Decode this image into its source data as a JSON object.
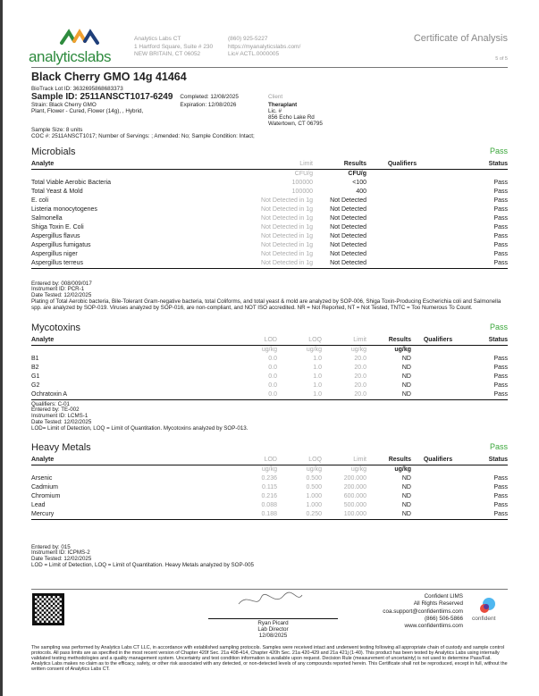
{
  "header": {
    "logo_text": "analyticslabs",
    "lab_name": "Analytics Labs CT",
    "address1": "1 Hartford Square, Suite # 230",
    "address2": "NEW BRITAIN, CT 06052",
    "phone": "(860) 925-5227",
    "website": "https://myanalyticslabs.com/",
    "license": "Lic# ACTL.0000005",
    "doc_title": "Certificate of Analysis",
    "page": "5 of 5"
  },
  "sample": {
    "product": "Black Cherry GMO 14g 41464",
    "biotrack": "BioTrack Lot ID: 3632695868683373",
    "sample_id": "Sample ID: 2511ANSCT1017-6249",
    "strain": "Strain: Black Cherry GMO",
    "type": "Plant, Flower - Cured, Flower (14g), , Hybrid,",
    "completed": "Completed: 12/08/2025",
    "expiration": "Expiration: 12/08/2026",
    "client_label": "Client",
    "client_name": "Theraplant",
    "client_lic": "Lic. #",
    "client_addr1": "856 Echo Lake Rd",
    "client_addr2": "Watertown, CT 06795",
    "size": "Sample Size: 8 units",
    "coc": "COC #: 2511ANSCT1017; Number of Servings: ; Amended: No; Sample Condition: Intact;"
  },
  "microbials": {
    "title": "Microbials",
    "status": "Pass",
    "headers": [
      "Analyte",
      "Limit",
      "Results",
      "Qualifiers",
      "Status"
    ],
    "units": [
      "",
      "CFU/g",
      "CFU/g"
    ],
    "rows": [
      [
        "Total Viable Aerobic Bacteria",
        "100000",
        "<100",
        "",
        "Pass"
      ],
      [
        "Total Yeast & Mold",
        "100000",
        "400",
        "",
        "Pass"
      ],
      [
        "E. coli",
        "Not Detected in 1g",
        "Not Detected",
        "",
        "Pass"
      ],
      [
        "Listeria monocytogenes",
        "Not Detected in 1g",
        "Not Detected",
        "",
        "Pass"
      ],
      [
        "Salmonella",
        "Not Detected in 1g",
        "Not Detected",
        "",
        "Pass"
      ],
      [
        "Shiga Toxin E. Coli",
        "Not Detected in 1g",
        "Not Detected",
        "",
        "Pass"
      ],
      [
        "Aspergillus flavus",
        "Not Detected in 1g",
        "Not Detected",
        "",
        "Pass"
      ],
      [
        "Aspergillus fumigatus",
        "Not Detected in 1g",
        "Not Detected",
        "",
        "Pass"
      ],
      [
        "Aspergillus niger",
        "Not Detected in 1g",
        "Not Detected",
        "",
        "Pass"
      ],
      [
        "Aspergillus terreus",
        "Not Detected in 1g",
        "Not Detected",
        "",
        "Pass"
      ]
    ],
    "notes": [
      "Entered by: 008/009/017",
      "Instrument ID: PCR-1",
      "Date Tested: 12/02/2025",
      "Plating of Total Aerobic bacteria, Bile-Tolerant Gram-negative bacteria, total Coliforms, and total yeast & mold are analyzed by SOP-006, Shiga Toxin-Producing Escherichia coli and Salmonella spp. are analyzed by SOP-019. Viruses analyzed by SOP-016, are non-compliant, and NOT ISO accredited. NR = Not Reported, NT = Not Tested, TNTC = Too Numerous To Count."
    ]
  },
  "mycotoxins": {
    "title": "Mycotoxins",
    "status": "Pass",
    "headers": [
      "Analyte",
      "LOD",
      "LOQ",
      "Limit",
      "Results",
      "Qualifiers",
      "Status"
    ],
    "units": [
      "",
      "ug/kg",
      "ug/kg",
      "ug/kg",
      "ug/kg"
    ],
    "rows": [
      [
        "B1",
        "0.0",
        "1.0",
        "20.0",
        "ND",
        "",
        "Pass"
      ],
      [
        "B2",
        "0.0",
        "1.0",
        "20.0",
        "ND",
        "",
        "Pass"
      ],
      [
        "G1",
        "0.0",
        "1.0",
        "20.0",
        "ND",
        "",
        "Pass"
      ],
      [
        "G2",
        "0.0",
        "1.0",
        "20.0",
        "ND",
        "",
        "Pass"
      ],
      [
        "Ochratoxin A",
        "0.0",
        "1.0",
        "20.0",
        "ND",
        "",
        "Pass"
      ]
    ],
    "notes": [
      "Qualifiers: C-01",
      "Entered by: TE-002",
      "Instrument ID: LCMS-1",
      "Date Tested: 12/02/2025",
      "LOD= Limit of Detection, LOQ = Limit of Quantitation. Mycotoxins analyzed by SOP-013."
    ]
  },
  "heavy_metals": {
    "title": "Heavy Metals",
    "status": "Pass",
    "headers": [
      "Analyte",
      "LOD",
      "LOQ",
      "Limit",
      "Results",
      "Qualifiers",
      "Status"
    ],
    "units": [
      "",
      "ug/kg",
      "ug/kg",
      "ug/kg",
      "ug/kg"
    ],
    "rows": [
      [
        "Arsenic",
        "0.236",
        "0.500",
        "200.000",
        "ND",
        "",
        "Pass"
      ],
      [
        "Cadmium",
        "0.115",
        "0.500",
        "200.000",
        "ND",
        "",
        "Pass"
      ],
      [
        "Chromium",
        "0.216",
        "1.000",
        "600.000",
        "ND",
        "",
        "Pass"
      ],
      [
        "Lead",
        "0.088",
        "1.000",
        "500.000",
        "ND",
        "",
        "Pass"
      ],
      [
        "Mercury",
        "0.188",
        "0.250",
        "100.000",
        "ND",
        "",
        "Pass"
      ]
    ],
    "notes": [
      "Entered by: 015",
      "Instrument ID: ICPMS-2",
      "Date Tested: 12/02/2025",
      "LOD = Limit of Detection, LOQ = Limit of Quantitation. Heavy Metals analyzed by SOP-005"
    ]
  },
  "footer": {
    "signer": "Ryan Picard",
    "signer_title": "Lab Director",
    "sign_date": "12/08/2025",
    "lims_name": "Confident LIMS",
    "rights": "All Rights Reserved",
    "email": "coa.support@confidentlims.com",
    "phone": "(866) 506-5866",
    "web": "www.confidentlims.com",
    "lims_logo": "confident",
    "disclaimer": "The sampling was performed by Analytics Labs CT LLC, in accordance with established sampling protocols. Samples were received intact and underwent testing following all appropriate chain of custody and sample control protocols. All pass limits are as specified in the most recent version of Chapter 420f Sec. 21a 408-414, Chapter 420h Sec. 21a 420-429 and 21a 421j (1-40). This product has been tested by Analytics Labs using internally validated testing methodologies and a quality management system. Uncertainty and test condition information is available upon request. Decision Rule (measurement of uncertainty) is not used to determine Pass/Fail. Analytics Labs makes no claim as to the efficacy, safety, or other risk associated with any detected, or non-detected levels of any compounds reported herein. This Certificate shall not be reproduced, except in full, without the written consent of Analytics Labs CT."
  },
  "colors": {
    "pass": "#3aa63a",
    "logo_green": "#2e8b3e",
    "logo_orange": "#f0a030",
    "logo_blue": "#2a6ebd"
  }
}
